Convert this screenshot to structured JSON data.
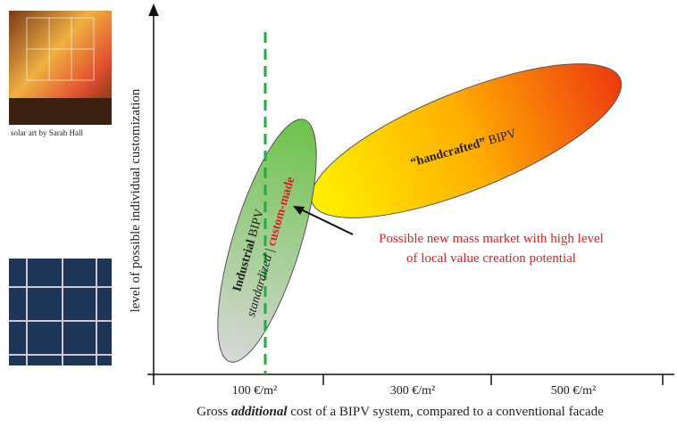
{
  "photo_caption": "solar art by Sarah Hall",
  "y_axis_label": "level of possible individual customization",
  "x_axis_label": {
    "before": "Gross ",
    "emphasis": "additional",
    "after": " cost of a BIPV system, compared to a conventional facade"
  },
  "x_ticks": [
    "100 €/m²",
    "300 €/m²",
    "500 €/m²"
  ],
  "handcrafted": {
    "bold": "“handcrafted”",
    "rest": " BIPV"
  },
  "industrial": {
    "bold": "Industrial",
    "rest": " BIPV",
    "left": "standardized",
    "separator": " | ",
    "right": "custom-made"
  },
  "annotation": [
    "Possible new mass market with high level",
    "of local value creation potential"
  ]
}
